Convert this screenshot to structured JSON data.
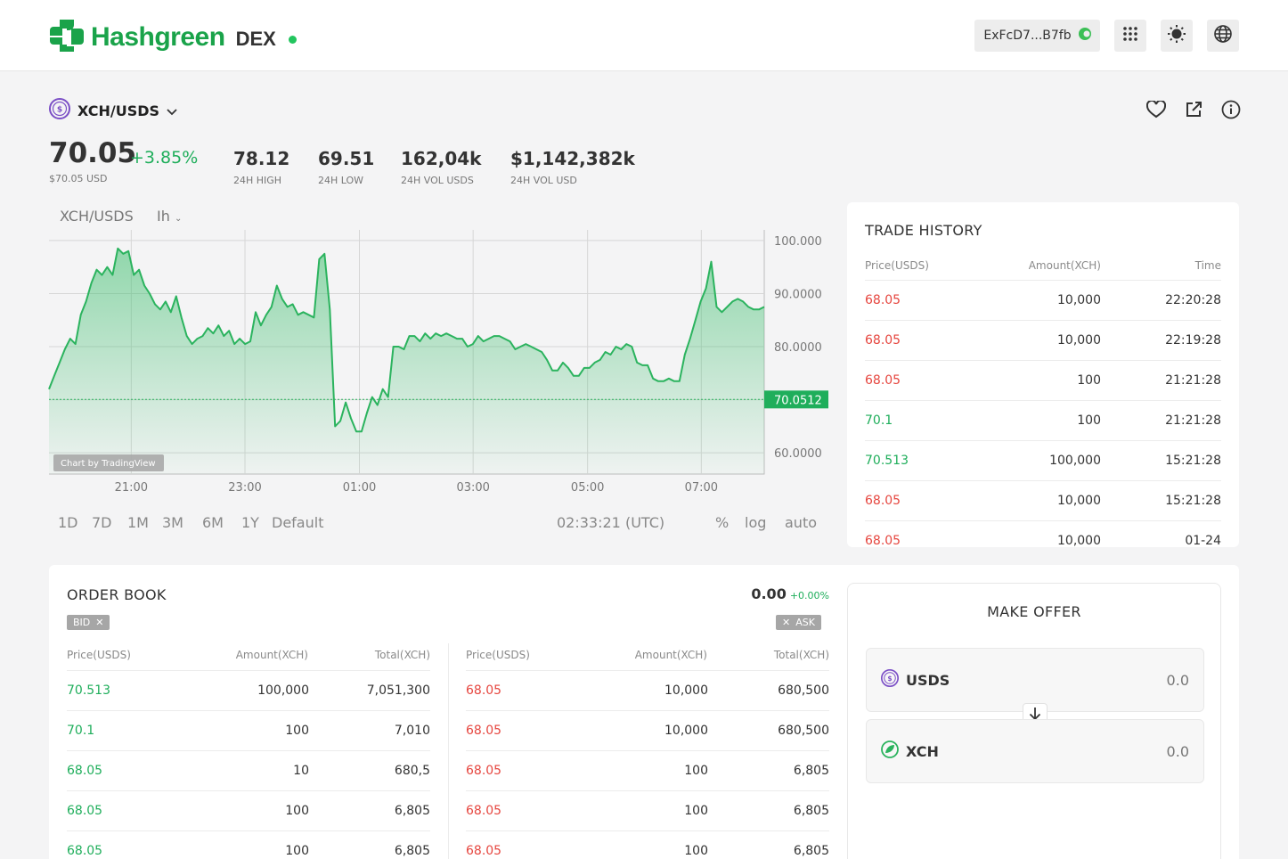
{
  "header": {
    "brand": "Hashgreen",
    "product": "DEX",
    "wallet_address": "ExFcD7...B7fb",
    "icons": [
      "apps-grid-icon",
      "sun-icon",
      "globe-icon"
    ]
  },
  "pair": {
    "symbol": "XCH/USDS",
    "actions": [
      "heart-icon",
      "external-link-icon",
      "info-icon"
    ]
  },
  "ticker": {
    "price": "70.05",
    "change": "+3.85%",
    "price_usd": "$70.05 USD",
    "stats": [
      {
        "value": "78.12",
        "label": "24H HIGH"
      },
      {
        "value": "69.51",
        "label": "24H LOW"
      },
      {
        "value": "162,04k",
        "label": "24H VOL USDS"
      },
      {
        "value": "$1,142,382k",
        "label": "24H VOL USD"
      }
    ]
  },
  "chart": {
    "symbol": "XCH/USDS",
    "interval": "Ih",
    "current_label": "70.0512",
    "watermark": "Chart by TradingView",
    "ranges": [
      "1D",
      "7D",
      "1M",
      "3M",
      "6M",
      "1Y",
      "Default"
    ],
    "clock": "02:33:21 (UTC)",
    "options": [
      "%",
      "log",
      "auto"
    ]
  },
  "chart_data": {
    "type": "area",
    "x_ticks": [
      "21:00",
      "23:00",
      "01:00",
      "03:00",
      "05:00",
      "07:00"
    ],
    "y_ticks": [
      "100.000",
      "90.0000",
      "80.0000",
      "70.0000",
      "60.0000"
    ],
    "ylim": [
      56,
      102
    ],
    "current_value": 70.0512,
    "values": [
      72.0,
      74.5,
      77.0,
      79.5,
      81.5,
      80.5,
      86.0,
      88.5,
      92.0,
      94.5,
      93.5,
      95.0,
      93.5,
      98.5,
      97.5,
      98.0,
      93.5,
      94.5,
      91.5,
      90.0,
      88.0,
      87.0,
      88.5,
      86.5,
      89.5,
      85.5,
      82.0,
      80.5,
      81.5,
      82.0,
      83.5,
      82.5,
      84.0,
      82.0,
      83.0,
      80.5,
      81.5,
      80.5,
      81.0,
      86.5,
      84.0,
      86.0,
      87.5,
      91.5,
      89.0,
      87.5,
      88.0,
      86.0,
      86.5,
      86.0,
      85.5,
      96.5,
      97.5,
      87.0,
      65.0,
      66.0,
      69.5,
      66.5,
      64.0,
      64.0,
      67.5,
      70.5,
      69.0,
      72.0,
      70.5,
      80.0,
      80.0,
      79.5,
      82.0,
      82.0,
      81.0,
      82.5,
      81.5,
      82.5,
      82.0,
      82.5,
      82.0,
      81.5,
      81.5,
      80.0,
      80.5,
      82.0,
      81.0,
      81.5,
      82.0,
      82.0,
      81.5,
      81.0,
      79.5,
      80.0,
      80.5,
      80.0,
      79.5,
      79.0,
      77.5,
      75.5,
      75.5,
      77.0,
      76.0,
      74.5,
      74.5,
      76.0,
      76.0,
      77.0,
      77.5,
      79.0,
      78.5,
      80.0,
      79.5,
      80.5,
      80.0,
      77.0,
      76.5,
      76.5,
      74.0,
      73.5,
      73.5,
      74.0,
      73.5,
      73.5,
      78.5,
      81.5,
      85.0,
      88.5,
      91.0,
      96.0,
      87.5,
      86.5,
      87.5,
      88.5,
      89.0,
      88.5,
      87.5,
      87.0,
      87.0,
      87.5
    ]
  },
  "trade_history": {
    "title": "TRADE HISTORY",
    "columns": [
      "Price(USDS)",
      "Amount(XCH)",
      "Time"
    ],
    "rows": [
      {
        "price": "68.05",
        "amount": "10,000",
        "time": "22:20:28",
        "side": "sell"
      },
      {
        "price": "68.05",
        "amount": "10,000",
        "time": "22:19:28",
        "side": "sell"
      },
      {
        "price": "68.05",
        "amount": "100",
        "time": "21:21:28",
        "side": "sell"
      },
      {
        "price": "70.1",
        "amount": "100",
        "time": "21:21:28",
        "side": "buy"
      },
      {
        "price": "70.513",
        "amount": "100,000",
        "time": "15:21:28",
        "side": "buy"
      },
      {
        "price": "68.05",
        "amount": "10,000",
        "time": "15:21:28",
        "side": "sell"
      },
      {
        "price": "68.05",
        "amount": "10,000",
        "time": "01-24",
        "side": "sell"
      }
    ]
  },
  "order_book": {
    "title": "ORDER BOOK",
    "last_price": "0.00",
    "last_change": "+0.00%",
    "bid_tag": "BID",
    "ask_tag": "ASK",
    "columns": [
      "Price(USDS)",
      "Amount(XCH)",
      "Total(XCH)"
    ],
    "bids": [
      {
        "price": "70.513",
        "amount": "100,000",
        "total": "7,051,300"
      },
      {
        "price": "70.1",
        "amount": "100",
        "total": "7,010"
      },
      {
        "price": "68.05",
        "amount": "10",
        "total": "680,5"
      },
      {
        "price": "68.05",
        "amount": "100",
        "total": "6,805"
      },
      {
        "price": "68.05",
        "amount": "100",
        "total": "6,805"
      }
    ],
    "asks": [
      {
        "price": "68.05",
        "amount": "10,000",
        "total": "680,500"
      },
      {
        "price": "68.05",
        "amount": "10,000",
        "total": "680,500"
      },
      {
        "price": "68.05",
        "amount": "100",
        "total": "6,805"
      },
      {
        "price": "68.05",
        "amount": "100",
        "total": "6,805"
      },
      {
        "price": "68.05",
        "amount": "100",
        "total": "6,805"
      }
    ]
  },
  "make_offer": {
    "title": "MAKE OFFER",
    "from": {
      "asset": "USDS",
      "value": "0.0"
    },
    "to": {
      "asset": "XCH",
      "value": "0.0"
    }
  },
  "colors": {
    "brand_green": "#1aa34a",
    "buy_green": "#1fae5b",
    "sell_red": "#e6463f",
    "chart_line": "#2bb35e"
  }
}
